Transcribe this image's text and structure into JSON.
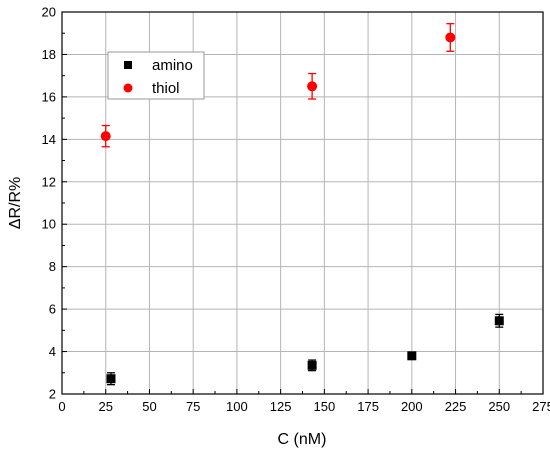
{
  "chart_data": {
    "type": "scatter",
    "title": "",
    "xlabel": "C (nM)",
    "ylabel": "ΔR/R%",
    "xlim": [
      0,
      275
    ],
    "ylim": [
      2,
      20
    ],
    "xticks": [
      0,
      25,
      50,
      75,
      100,
      125,
      150,
      175,
      200,
      225,
      250,
      275
    ],
    "yticks": [
      2,
      4,
      6,
      8,
      10,
      12,
      14,
      16,
      18,
      20
    ],
    "grid": true,
    "legend_position": "top-left",
    "series": [
      {
        "name": "amino",
        "marker": "square",
        "color": "#000000",
        "points": [
          {
            "x": 28,
            "y": 2.72,
            "err": 0.28
          },
          {
            "x": 143,
            "y": 3.35,
            "err": 0.25
          },
          {
            "x": 200,
            "y": 3.8,
            "err": 0.1
          },
          {
            "x": 250,
            "y": 5.45,
            "err": 0.3
          }
        ]
      },
      {
        "name": "thiol",
        "marker": "circle",
        "color": "#ff0000",
        "points": [
          {
            "x": 25,
            "y": 14.15,
            "err": 0.5
          },
          {
            "x": 143,
            "y": 16.5,
            "err": 0.6
          },
          {
            "x": 222,
            "y": 18.8,
            "err": 0.65
          }
        ]
      }
    ]
  }
}
